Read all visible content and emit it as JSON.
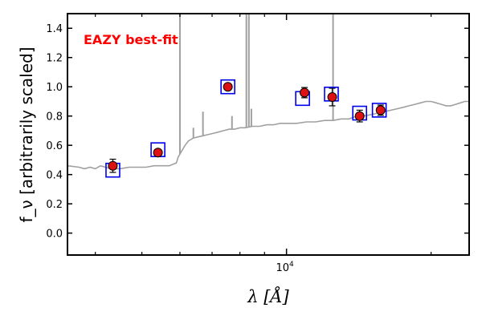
{
  "chart_data": {
    "type": "scatter",
    "annotation": "EAZY best-fit",
    "annotation_color": "#ff0000",
    "xlabel": "λ [Å]",
    "ylabel": "f_ν [arbitrarily scaled]",
    "xscale": "log",
    "xlim": [
      3500,
      24000
    ],
    "ylim": [
      -0.15,
      1.5
    ],
    "y_ticks": [
      0.0,
      0.2,
      0.4,
      0.6,
      0.8,
      1.0,
      1.2,
      1.4
    ],
    "y_tick_labels": [
      "0.0",
      "0.2",
      "0.4",
      "0.6",
      "0.8",
      "1.0",
      "1.2",
      "1.4"
    ],
    "x_major_tick": {
      "value": 10000,
      "label_base": "10",
      "label_exp": "4"
    },
    "x_minor_ticks": [
      4000,
      5000,
      6000,
      7000,
      8000,
      9000,
      20000
    ],
    "grid": false,
    "colors": {
      "template": "#a0a0a0",
      "model_box": "#0000ee",
      "observed": "#dd1111",
      "errorbar": "#000000"
    },
    "template": {
      "name": "EAZY best-fit",
      "x": [
        3500,
        3700,
        3800,
        3900,
        4000,
        4100,
        4200,
        4300,
        4500,
        4700,
        4900,
        5100,
        5300,
        5500,
        5700,
        5800,
        5900,
        5950,
        6050,
        6150,
        6250,
        6400,
        6600,
        6800,
        7000,
        7200,
        7400,
        7600,
        7800,
        8000,
        8200,
        8500,
        8800,
        9100,
        9400,
        9700,
        10000,
        10500,
        11000,
        11500,
        12000,
        12500,
        13000,
        13500,
        14000,
        14500,
        15000,
        15500,
        16000,
        16500,
        17000,
        17500,
        18000,
        18500,
        19000,
        19500,
        20000,
        20500,
        21000,
        21500,
        22000,
        22500,
        23000,
        23500,
        24000
      ],
      "y": [
        0.46,
        0.45,
        0.44,
        0.45,
        0.44,
        0.46,
        0.45,
        0.44,
        0.44,
        0.45,
        0.45,
        0.45,
        0.46,
        0.46,
        0.46,
        0.47,
        0.48,
        0.52,
        0.56,
        0.6,
        0.63,
        0.65,
        0.66,
        0.67,
        0.68,
        0.69,
        0.7,
        0.71,
        0.71,
        0.72,
        0.72,
        0.73,
        0.73,
        0.74,
        0.74,
        0.75,
        0.75,
        0.75,
        0.76,
        0.76,
        0.77,
        0.77,
        0.78,
        0.78,
        0.8,
        0.8,
        0.81,
        0.82,
        0.83,
        0.84,
        0.85,
        0.86,
        0.87,
        0.88,
        0.89,
        0.9,
        0.9,
        0.89,
        0.88,
        0.87,
        0.87,
        0.88,
        0.89,
        0.9,
        0.9
      ]
    },
    "emission_lines": [
      {
        "x": 6000,
        "y": 1.5
      },
      {
        "x": 6400,
        "y": 0.72
      },
      {
        "x": 6700,
        "y": 0.83
      },
      {
        "x": 7700,
        "y": 0.8
      },
      {
        "x": 8250,
        "y": 1.5
      },
      {
        "x": 8350,
        "y": 1.5
      },
      {
        "x": 8450,
        "y": 0.85
      },
      {
        "x": 12500,
        "y": 1.5
      }
    ],
    "model_points": {
      "x": [
        4350,
        5400,
        7550,
        10800,
        12400,
        14200,
        15600
      ],
      "y": [
        0.43,
        0.57,
        1.0,
        0.92,
        0.95,
        0.82,
        0.84
      ]
    },
    "observed_points": {
      "x": [
        4350,
        5400,
        7550,
        10900,
        12450,
        14200,
        15700
      ],
      "y": [
        0.46,
        0.55,
        1.0,
        0.96,
        0.93,
        0.8,
        0.84
      ],
      "yerr": [
        0.045,
        0.02,
        0.02,
        0.035,
        0.06,
        0.04,
        0.035
      ]
    }
  }
}
